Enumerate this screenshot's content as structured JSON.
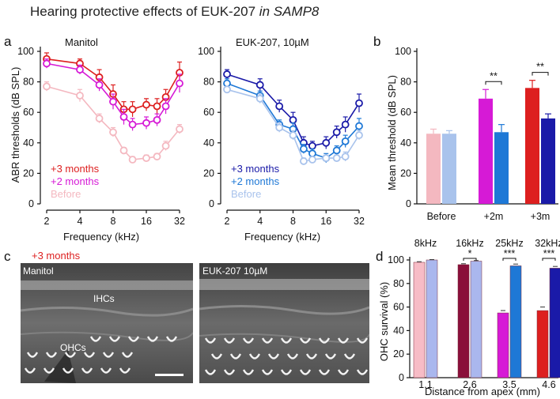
{
  "title": {
    "main": "Hearing protective effects of EUK-207",
    "italic": "in SAMP8"
  },
  "panel_letters": {
    "a": "a",
    "b": "b",
    "c": "c",
    "d": "d"
  },
  "colors": {
    "red": "#dd1f1f",
    "magenta": "#d61ad6",
    "pink": "#f4b8c0",
    "navy": "#1a1aa8",
    "blue": "#1e78d6",
    "lightblue": "#a9c3ec",
    "maroon": "#8a0f3a",
    "pink_fill": "#f7bcc6",
    "lavender": "#aab7ee"
  },
  "chart_data": [
    {
      "id": "a-left",
      "type": "line",
      "title": "Manitol",
      "xlabel": "Frequency (kHz)",
      "ylabel": "ABR thresholds (dB SPL)",
      "x": [
        2,
        4,
        6,
        8,
        10,
        12,
        16,
        20,
        24,
        32
      ],
      "xticks": [
        2,
        4,
        8,
        16,
        32
      ],
      "ylim": [
        0,
        100
      ],
      "yticks": [
        0,
        20,
        40,
        60,
        80,
        100
      ],
      "series": [
        {
          "name": "+3 months",
          "color": "#dd1f1f",
          "values": [
            95,
            92,
            83,
            72,
            62,
            62,
            65,
            64,
            70,
            86
          ],
          "err": [
            4,
            3,
            5,
            6,
            5,
            5,
            4,
            5,
            5,
            7
          ]
        },
        {
          "name": "+2 months",
          "color": "#d61ad6",
          "values": [
            92,
            88,
            78,
            67,
            57,
            52,
            53,
            55,
            64,
            79
          ],
          "err": [
            3,
            3,
            4,
            5,
            5,
            4,
            4,
            4,
            5,
            6
          ]
        },
        {
          "name": "Before",
          "color": "#f4b8c0",
          "values": [
            77,
            71,
            56,
            47,
            35,
            29,
            30,
            31,
            38,
            49
          ],
          "err": [
            3,
            4,
            3,
            3,
            2,
            2,
            2,
            2,
            3,
            3
          ]
        }
      ]
    },
    {
      "id": "a-right",
      "type": "line",
      "title": "EUK-207, 10µM",
      "xlabel": "Frequency (kHz)",
      "x": [
        2,
        4,
        6,
        8,
        10,
        12,
        16,
        20,
        24,
        32
      ],
      "xticks": [
        2,
        4,
        8,
        16,
        32
      ],
      "ylim": [
        0,
        100
      ],
      "yticks": [
        0,
        20,
        40,
        60,
        80,
        100
      ],
      "series": [
        {
          "name": "+3 months",
          "color": "#1a1aa8",
          "values": [
            85,
            78,
            64,
            55,
            40,
            38,
            40,
            47,
            52,
            66
          ],
          "err": [
            3,
            4,
            4,
            5,
            4,
            3,
            4,
            4,
            5,
            6
          ]
        },
        {
          "name": "+2 months",
          "color": "#1e78d6",
          "values": [
            79,
            71,
            52,
            49,
            36,
            33,
            30,
            35,
            41,
            51
          ],
          "err": [
            3,
            3,
            3,
            4,
            3,
            3,
            3,
            3,
            4,
            5
          ]
        },
        {
          "name": "Before",
          "color": "#a9c3ec",
          "values": [
            75,
            69,
            50,
            45,
            28,
            29,
            30,
            30,
            31,
            45
          ],
          "err": [
            2,
            3,
            3,
            3,
            2,
            2,
            2,
            2,
            3,
            3
          ]
        }
      ]
    },
    {
      "id": "b",
      "type": "bar",
      "ylabel": "Mean threshold (dB SPL)",
      "ylim": [
        0,
        100
      ],
      "yticks": [
        0,
        20,
        40,
        60,
        80,
        100
      ],
      "categories": [
        "Before",
        "+2m",
        "+3m"
      ],
      "series": [
        {
          "name": "Manitol",
          "colors": [
            "#f4b8c0",
            "#d61ad6",
            "#dd1f1f"
          ],
          "values": [
            46,
            69,
            76
          ],
          "err": [
            3,
            6,
            5
          ]
        },
        {
          "name": "EUK-207",
          "colors": [
            "#a9c3ec",
            "#1e78d6",
            "#1a1aa8"
          ],
          "values": [
            46,
            47,
            56
          ],
          "err": [
            2,
            5,
            3
          ]
        }
      ],
      "annotations": [
        {
          "between": "+2m",
          "text": "**"
        },
        {
          "between": "+3m",
          "text": "**"
        }
      ]
    },
    {
      "id": "d",
      "type": "bar",
      "xlabel": "Distance from apex (mm)",
      "ylabel": "OHC survival (%)",
      "ylim": [
        0,
        100
      ],
      "yticks": [
        0,
        20,
        40,
        60,
        80,
        100
      ],
      "categories": [
        "1.1",
        "2.6",
        "3.5",
        "4.6"
      ],
      "top_labels": [
        "8kHz",
        "16kHz",
        "25kHz",
        "32kHz"
      ],
      "series": [
        {
          "name": "Manitol",
          "colors": [
            "#f7bcc6",
            "#8a0f3a",
            "#d61ad6",
            "#dd1f1f"
          ],
          "values": [
            98,
            96,
            55,
            57
          ],
          "err": [
            0.5,
            0.8,
            2,
            3
          ]
        },
        {
          "name": "EUK-207",
          "colors": [
            "#aab7ee",
            "#aab7ee",
            "#1e78d6",
            "#1a1aa8"
          ],
          "values": [
            100,
            99,
            95,
            93
          ],
          "err": [
            0.3,
            0.5,
            1.5,
            1.5
          ]
        }
      ],
      "annotations": [
        {
          "between": "2.6",
          "text": "*"
        },
        {
          "between": "3.5",
          "text": "***"
        },
        {
          "between": "4.6",
          "text": "***"
        }
      ]
    }
  ],
  "micrographs": {
    "group_label": "+3 months",
    "left": {
      "label": "Manitol",
      "ihc_label": "IHCs",
      "ohc_label": "OHCs"
    },
    "right": {
      "label": "EUK-207 10µM"
    }
  }
}
